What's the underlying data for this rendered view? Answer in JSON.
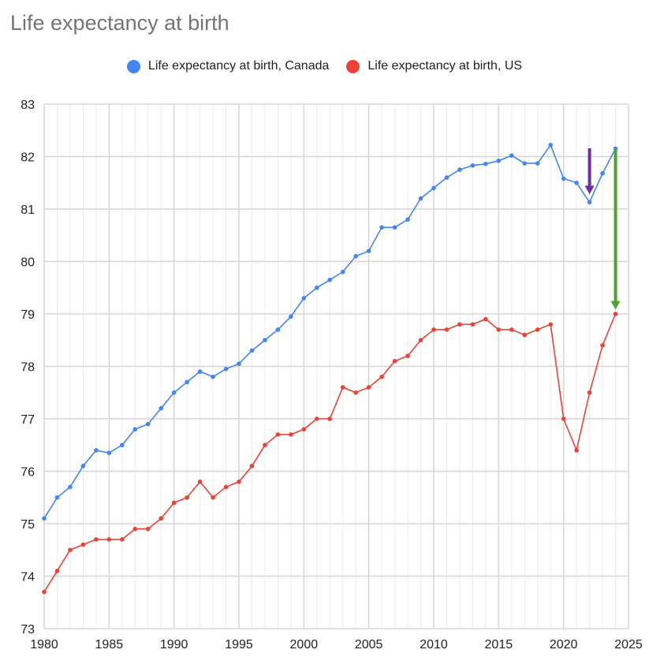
{
  "chart_data": {
    "type": "line",
    "title": "Life expectancy at birth",
    "xlabel": "",
    "ylabel": "",
    "xlim": [
      1980,
      2025
    ],
    "ylim": [
      73,
      83
    ],
    "x_ticks": [
      1980,
      1985,
      1990,
      1995,
      2000,
      2005,
      2010,
      2015,
      2020,
      2025
    ],
    "y_ticks": [
      73,
      74,
      75,
      76,
      77,
      78,
      79,
      80,
      81,
      82,
      83
    ],
    "grid": true,
    "minor_x_grid_step": 1,
    "legend_position": "top-center",
    "x": [
      1980,
      1981,
      1982,
      1983,
      1984,
      1985,
      1986,
      1987,
      1988,
      1989,
      1990,
      1991,
      1992,
      1993,
      1994,
      1995,
      1996,
      1997,
      1998,
      1999,
      2000,
      2001,
      2002,
      2003,
      2004,
      2005,
      2006,
      2007,
      2008,
      2009,
      2010,
      2011,
      2012,
      2013,
      2014,
      2015,
      2016,
      2017,
      2018,
      2019,
      2020,
      2021,
      2022,
      2023,
      2024
    ],
    "series": [
      {
        "name": "Life expectancy at birth, Canada",
        "color": "#4285f4",
        "values": [
          75.1,
          75.5,
          75.7,
          76.1,
          76.4,
          76.35,
          76.5,
          76.8,
          76.9,
          77.2,
          77.5,
          77.7,
          77.9,
          77.8,
          77.95,
          78.05,
          78.3,
          78.5,
          78.7,
          78.95,
          79.3,
          79.5,
          79.65,
          79.8,
          80.1,
          80.2,
          80.65,
          80.65,
          80.8,
          81.2,
          81.4,
          81.6,
          81.75,
          81.83,
          81.86,
          81.92,
          82.02,
          81.87,
          81.87,
          82.22,
          81.58,
          81.5,
          81.13,
          81.68,
          82.15
        ]
      },
      {
        "name": "Life expectancy at birth, US",
        "color": "#ea4335",
        "values": [
          73.7,
          74.1,
          74.5,
          74.6,
          74.7,
          74.7,
          74.7,
          74.9,
          74.9,
          75.1,
          75.4,
          75.5,
          75.8,
          75.5,
          75.7,
          75.8,
          76.1,
          76.5,
          76.7,
          76.7,
          76.8,
          77.0,
          77.0,
          77.6,
          77.5,
          77.6,
          77.8,
          78.1,
          78.2,
          78.5,
          78.7,
          78.7,
          78.8,
          78.8,
          78.9,
          78.7,
          78.7,
          78.6,
          78.7,
          78.8,
          77.0,
          76.4,
          77.5,
          78.4,
          79.0
        ]
      }
    ],
    "annotations": [
      {
        "type": "arrow",
        "color": "#6f2da8",
        "x": 2022,
        "from_y": 82.15,
        "to_y": 81.28,
        "meaning": "points to Canada 2022 dip"
      },
      {
        "type": "arrow",
        "color": "#4fa42f",
        "x": 2024,
        "from_y": 82.15,
        "to_y": 79.08,
        "meaning": "gap between Canada and US in 2024"
      }
    ]
  }
}
